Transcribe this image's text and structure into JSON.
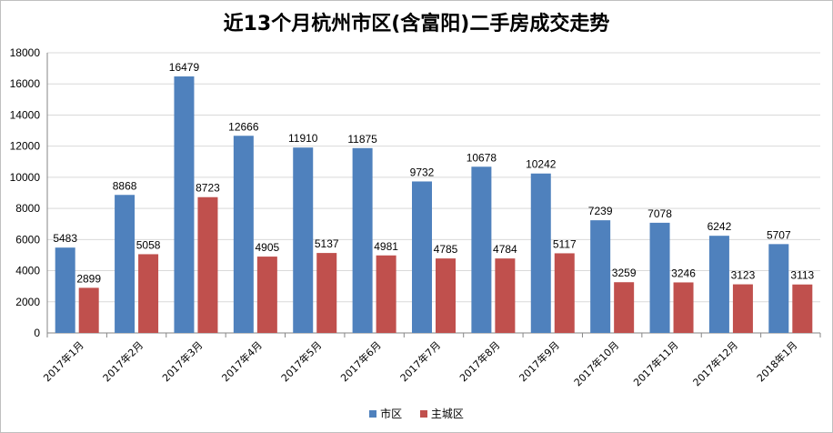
{
  "chart_data": {
    "type": "bar",
    "title": "近13个月杭州市区(含富阳)二手房成交走势",
    "categories": [
      "2017年1月",
      "2017年2月",
      "2017年3月",
      "2017年4月",
      "2017年5月",
      "2017年6月",
      "2017年7月",
      "2017年8月",
      "2017年9月",
      "2017年10月",
      "2017年11月",
      "2017年12月",
      "2018年1月"
    ],
    "series": [
      {
        "name": "市区",
        "color": "#4f81bd",
        "values": [
          5483,
          8868,
          16479,
          12666,
          11910,
          11875,
          9732,
          10678,
          10242,
          7239,
          7078,
          6242,
          5707
        ]
      },
      {
        "name": "主城区",
        "color": "#c0504d",
        "values": [
          2899,
          5058,
          8723,
          4905,
          5137,
          4981,
          4785,
          4784,
          5117,
          3259,
          3246,
          3123,
          3113
        ]
      }
    ],
    "ylim": [
      0,
      18000
    ],
    "yticks": [
      0,
      2000,
      4000,
      6000,
      8000,
      10000,
      12000,
      14000,
      16000,
      18000
    ],
    "grid": true,
    "legend_position": "bottom"
  }
}
